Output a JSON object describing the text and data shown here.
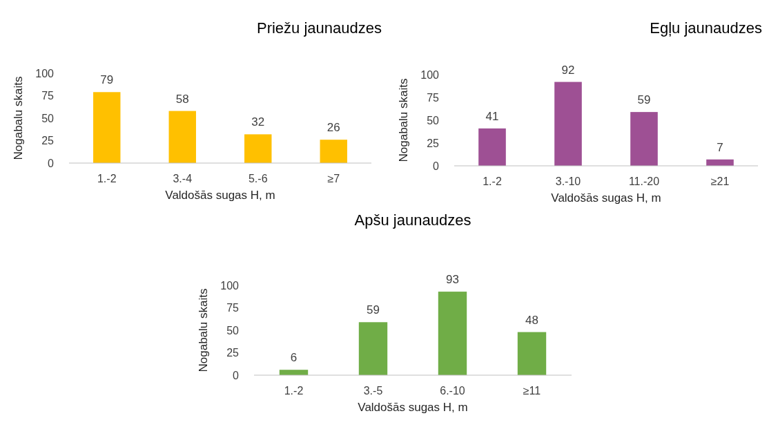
{
  "chart_data": [
    {
      "type": "bar",
      "title": "Priežu jaunaudzes",
      "xlabel": "Valdošās sugas H, m",
      "ylabel": "Nogabalu skaits",
      "categories": [
        "1.-2",
        "3.-4",
        "5.-6",
        "≥7"
      ],
      "values": [
        79,
        58,
        32,
        26
      ],
      "color": "#ffc000",
      "ylim": [
        0,
        100
      ],
      "yticks": [
        0,
        25,
        50,
        75,
        100
      ],
      "data_labels": true,
      "grid": false
    },
    {
      "type": "bar",
      "title": "Egļu jaunaudzes",
      "xlabel": "Valdošās sugas H, m",
      "ylabel": "Nogabalu skaits",
      "categories": [
        "1.-2",
        "3.-10",
        "11.-20",
        "≥21"
      ],
      "values": [
        41,
        92,
        59,
        7
      ],
      "color": "#9e5094",
      "ylim": [
        0,
        100
      ],
      "yticks": [
        0,
        25,
        50,
        75,
        100
      ],
      "data_labels": true,
      "grid": false
    },
    {
      "type": "bar",
      "title": "Apšu jaunaudzes",
      "xlabel": "Valdošās sugas H, m",
      "ylabel": "Nogabalu skaits",
      "categories": [
        "1.-2",
        "3.-5",
        "6.-10",
        "≥11"
      ],
      "values": [
        6,
        59,
        93,
        48
      ],
      "color": "#70ad47",
      "ylim": [
        0,
        100
      ],
      "yticks": [
        0,
        25,
        50,
        75,
        100
      ],
      "data_labels": true,
      "grid": false
    }
  ]
}
